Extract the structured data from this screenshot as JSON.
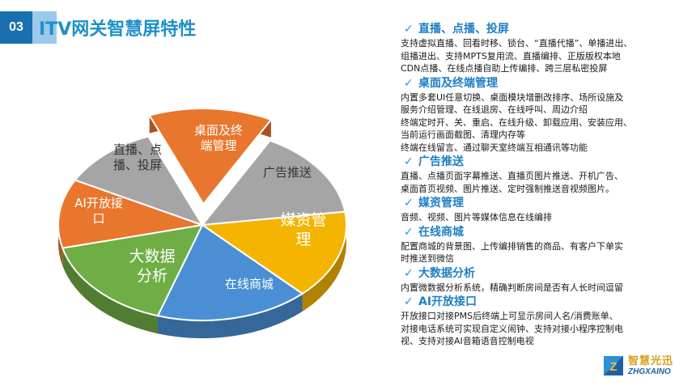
{
  "header": {
    "number": "03",
    "title": "ITV网关智慧屏特性"
  },
  "pie": {
    "slices": [
      {
        "label_lines": [
          "桌面及终",
          "端管理"
        ],
        "color": "#e8762d"
      },
      {
        "label_lines": [
          "广告推送"
        ],
        "color": "#a5a5a5"
      },
      {
        "label_lines": [
          "媒资管",
          "理"
        ],
        "color": "#f5b400"
      },
      {
        "label_lines": [
          "在线商城"
        ],
        "color": "#4a8fd4"
      },
      {
        "label_lines": [
          "大数据",
          "分析"
        ],
        "color": "#6fae45"
      },
      {
        "label_lines": [
          "AI开放接",
          "口"
        ],
        "color": "#e8762d"
      },
      {
        "label_lines": [
          "直播、点",
          "播、投屏"
        ],
        "color": "#a5a5a5"
      }
    ]
  },
  "features": [
    {
      "heading": "直播、点播、投屏",
      "lines": [
        "支持虚拟直播、回看时移、锁台、“直播代播”、单播进出、",
        "组播进出、支持MPTS复用流、直播编排、正版版权本地",
        "CDN点播、在线点播自助上传编排、跨三层私密投屏"
      ]
    },
    {
      "heading": "桌面及终端管理",
      "lines": [
        "内置多套UI任意切换、桌面模块增删改排序、场所设施及",
        "服务介绍管理、在线退房、在线呼叫、周边介绍",
        "终端定时开、关、重启、在线升级、卸载应用、安装应用、",
        "当前运行画面截图、清理内存等",
        "终端在线留言、通过聊天室终端互相通讯等功能"
      ]
    },
    {
      "heading": "广告推送",
      "lines": [
        "直播、点播页面字幕推送、直播页图片推送、开机广告、",
        "桌面首页视频、图片推送、定时强制推送音视频图片。"
      ]
    },
    {
      "heading": "媒资管理",
      "lines": [
        "音频、视频、图片等媒体信息在线编排"
      ]
    },
    {
      "heading": "在线商城",
      "lines": [
        "配置商城的背景图、上传编排销售的商品、有客户下单实",
        "时推送到微信"
      ]
    },
    {
      "heading": "大数据分析",
      "lines": [
        "内置微数据分析系统，精确判断房间是否有人长时间逗留"
      ]
    },
    {
      "heading": "AI开放接口",
      "lines": [
        "开放接口对接PMS后终端上可显示房间人名/消费账单、",
        "对接电话系统可实现自定义闹钟、支持对接小程序控制电",
        "视、支持对接AI音箱语音控制电视"
      ]
    }
  ],
  "logo": {
    "cn": "智慧光迅",
    "en": "ZHGXAINO"
  }
}
